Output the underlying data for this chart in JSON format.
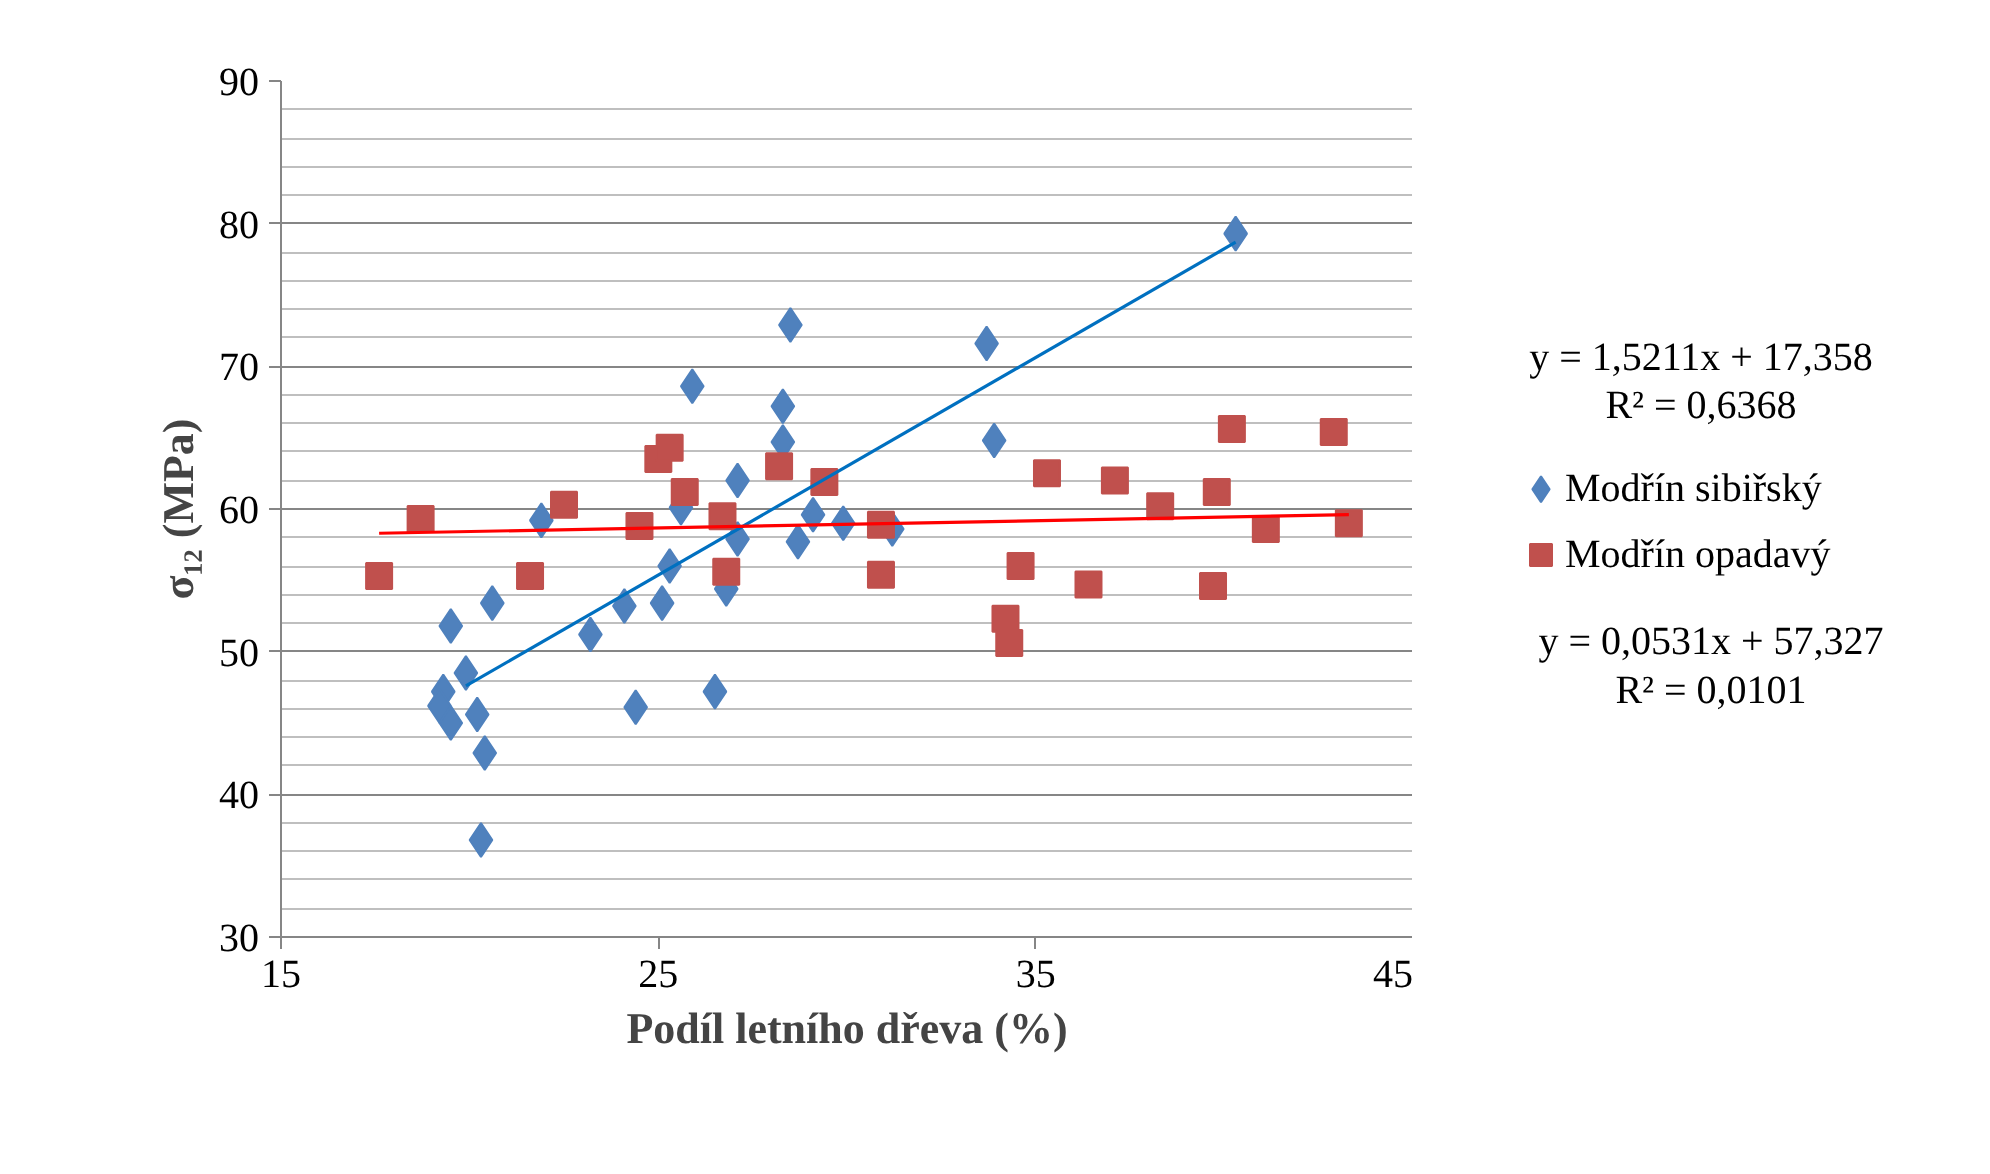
{
  "chart_data": {
    "type": "scatter",
    "xlabel": "Podíl letního dřeva (%)",
    "ylabel": "σ₁₂ (MPa)",
    "xlim": [
      15,
      45
    ],
    "xticks": [
      15,
      25,
      35,
      45
    ],
    "ylim": [
      30,
      90
    ],
    "yticks": [
      30,
      40,
      50,
      60,
      70,
      80,
      90
    ],
    "grid": "y",
    "legend": "right",
    "annotations": [
      "y = 1,5211x + 17,358",
      "R² = 0,6368",
      "y = 0,0531x + 57,327",
      "R² = 0,0101"
    ],
    "series": [
      {
        "name": "Modřín sibiřský",
        "color": "#4f81bd",
        "marker": "diamond",
        "x": [
          28.5,
          25.9,
          28.3,
          28.3,
          27.1,
          25.6,
          21.9,
          29.1,
          29.9,
          27.1,
          28.7,
          25.3,
          26.8,
          24.1,
          25.1,
          20.6,
          19.5,
          23.2,
          19.9,
          19.3,
          19.2,
          19.5,
          20.2,
          24.4,
          26.5,
          20.4,
          20.3,
          40.3,
          33.7,
          33.9,
          31.2
        ],
        "values": [
          72.9,
          68.6,
          67.2,
          64.7,
          62.0,
          60.1,
          59.2,
          59.6,
          59.0,
          57.9,
          57.7,
          56.0,
          54.4,
          53.2,
          53.4,
          53.4,
          51.8,
          51.2,
          48.5,
          47.2,
          46.2,
          45.0,
          45.6,
          46.1,
          47.2,
          42.9,
          36.8,
          79.3,
          71.6,
          64.8,
          58.6
        ]
      },
      {
        "name": "Modřín opadavý",
        "color": "#c0504d",
        "marker": "square",
        "x": [
          17.6,
          18.7,
          21.6,
          22.5,
          24.5,
          25.0,
          25.3,
          25.7,
          26.7,
          26.8,
          28.2,
          29.4,
          30.9,
          30.9,
          35.3,
          34.6,
          34.2,
          34.3,
          36.4,
          37.1,
          38.3,
          39.8,
          40.2,
          39.7,
          41.1,
          42.9,
          43.3
        ],
        "values": [
          55.3,
          59.3,
          55.3,
          60.3,
          58.8,
          63.5,
          64.3,
          61.2,
          59.5,
          55.6,
          63.0,
          61.9,
          58.9,
          55.4,
          62.5,
          56.0,
          52.3,
          50.6,
          54.7,
          62.0,
          60.2,
          61.2,
          65.6,
          54.6,
          58.6,
          65.4,
          59.0
        ]
      },
      {
        "type": "line",
        "color": "#0070c0",
        "marker": "none",
        "x": [
          19.9,
          40.3
        ],
        "values": [
          47.6,
          78.7
        ]
      },
      {
        "type": "line",
        "color": "#ff0000",
        "marker": "none",
        "x": [
          17.6,
          43.3
        ],
        "values": [
          58.3,
          59.6
        ]
      }
    ]
  }
}
